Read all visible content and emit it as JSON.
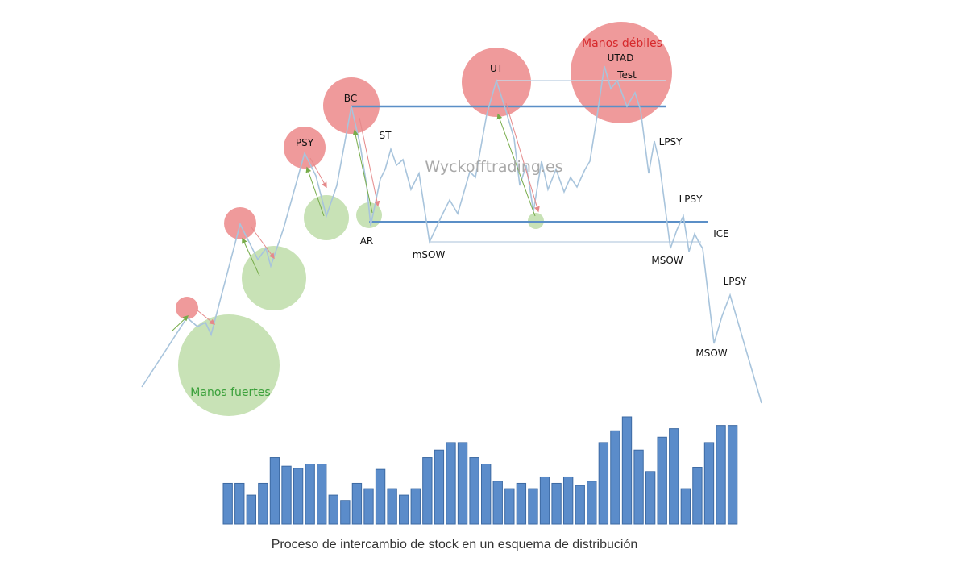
{
  "colors": {
    "weak_circle": "#ef9a9b",
    "strong_circle": "#c8e2b6",
    "price_line": "#a8c4dc",
    "level_line": "#5b8fc7",
    "thin_level": "#c6d6e6",
    "volume_bar": "#5b8cca",
    "volume_border": "#3d6aa3",
    "arrow_green": "#77ac4a",
    "arrow_red": "#e5898a"
  },
  "labels": {
    "manos_debiles": "Manos débiles",
    "utad": "UTAD",
    "test": "Test",
    "ut": "UT",
    "bc": "BC",
    "st": "ST",
    "psy": "PSY",
    "ar": "AR",
    "msow_minor": "mSOW",
    "lpsy_1": "LPSY",
    "lpsy_2": "LPSY",
    "ice": "ICE",
    "msow_1": "MSOW",
    "lpsy_3": "LPSY",
    "msow_2": "MSOW",
    "manos_fuertes": "Manos fuertes",
    "watermark": "Wyckofftrading.es"
  },
  "caption": "Proceso de intercambio de stock en un esquema de distribución",
  "volume": [
    0.38,
    0.38,
    0.27,
    0.38,
    0.62,
    0.54,
    0.52,
    0.56,
    0.56,
    0.27,
    0.22,
    0.38,
    0.33,
    0.51,
    0.33,
    0.27,
    0.33,
    0.62,
    0.69,
    0.76,
    0.76,
    0.62,
    0.56,
    0.4,
    0.33,
    0.38,
    0.33,
    0.44,
    0.38,
    0.44,
    0.36,
    0.4,
    0.76,
    0.87,
    1.0,
    0.69,
    0.49,
    0.81,
    0.89,
    0.33,
    0.53,
    0.76,
    0.92,
    0.92
  ]
}
